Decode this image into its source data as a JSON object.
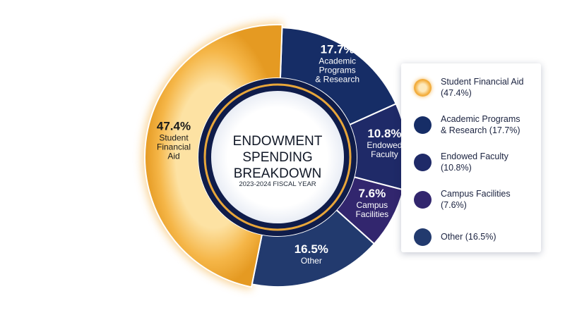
{
  "chart_data": {
    "type": "pie",
    "title": "ENDOWMENT SPENDING BREAKDOWN",
    "subtitle": "2023-2024 FISCAL YEAR",
    "slices": [
      {
        "label_lines": [
          "Student",
          "Financial",
          "Aid"
        ],
        "value": 47.4,
        "value_text": "47.4%",
        "color": "#f4b042",
        "legend": "Student Financial Aid (47.4%)"
      },
      {
        "label_lines": [
          "Academic",
          "Programs",
          "& Research"
        ],
        "value": 17.7,
        "value_text": "17.7%",
        "color": "#162d66",
        "legend": "Academic Programs & Research (17.7%)"
      },
      {
        "label_lines": [
          "Endowed",
          "Faculty"
        ],
        "value": 10.8,
        "value_text": "10.8%",
        "color": "#1f2a68",
        "legend": "Endowed Faculty (10.8%)"
      },
      {
        "label_lines": [
          "Campus",
          "Facilities"
        ],
        "value": 7.6,
        "value_text": "7.6%",
        "color": "#32266e",
        "legend": "Campus Facilities (7.6%)"
      },
      {
        "label_lines": [
          "Other"
        ],
        "value": 16.5,
        "value_text": "16.5%",
        "color": "#223a6e",
        "legend": "Other (16.5%)"
      }
    ],
    "legend_position": "right"
  }
}
